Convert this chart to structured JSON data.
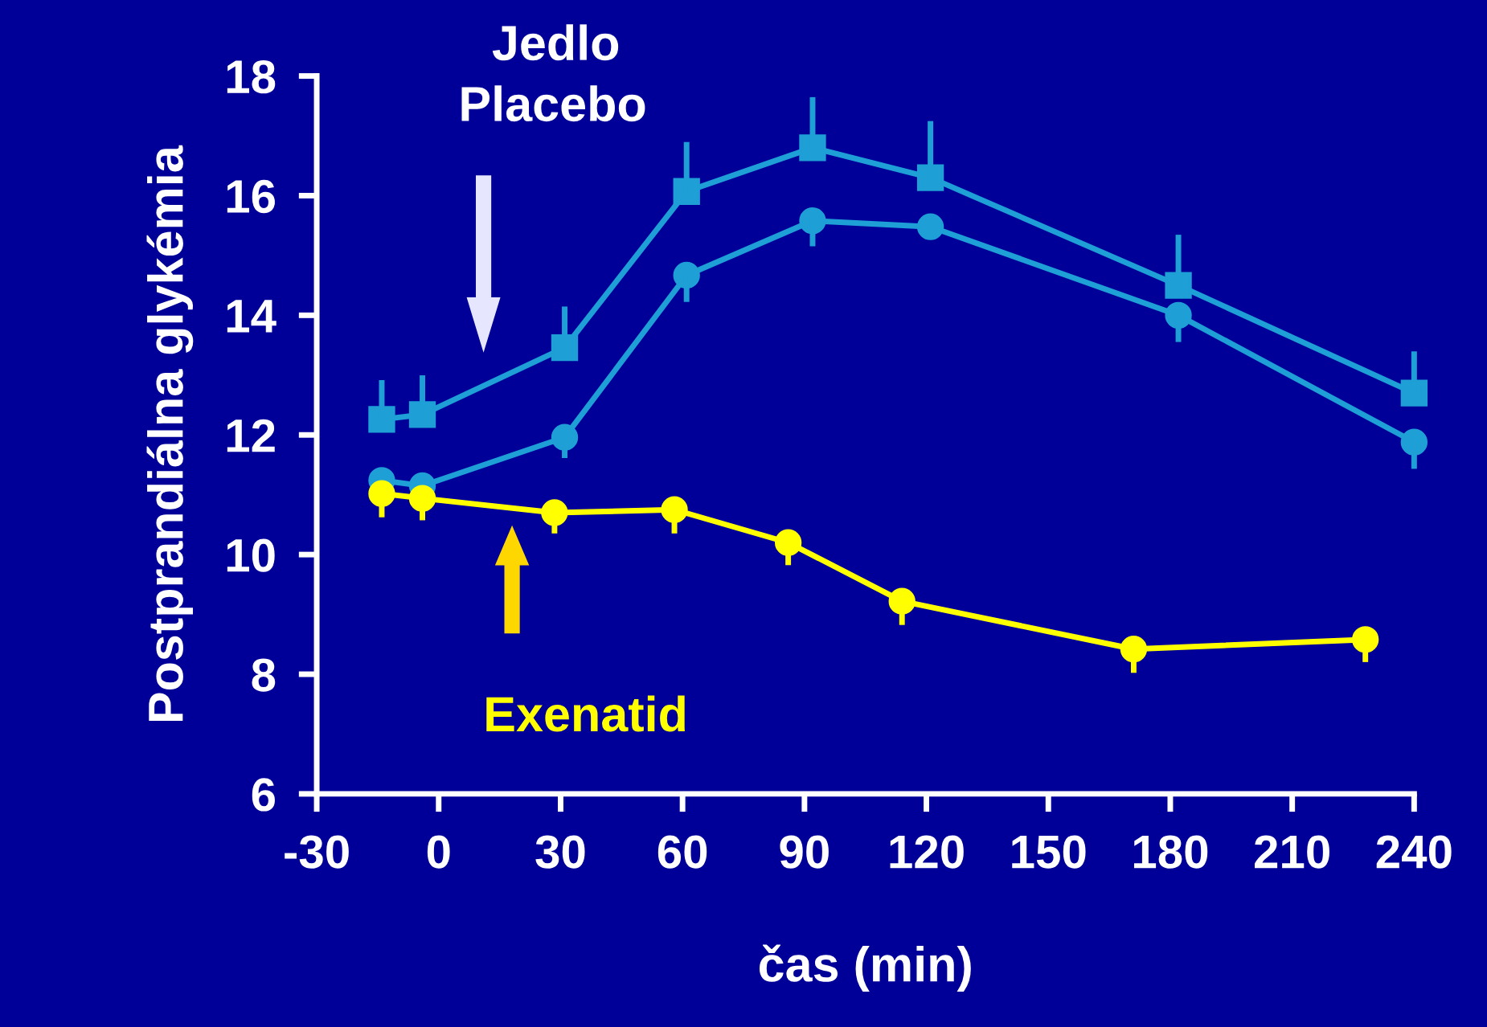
{
  "chart_data": {
    "type": "line",
    "xlabel": "čas (min)",
    "ylabel": "Postprandiálna glykémia",
    "xlim": [
      -30,
      240
    ],
    "xticks": [
      -30,
      0,
      30,
      60,
      90,
      120,
      150,
      180,
      210,
      240
    ],
    "ylim": [
      6,
      18
    ],
    "yticks": [
      6,
      8,
      10,
      12,
      14,
      16,
      18
    ],
    "grid": false,
    "legend": false,
    "series": [
      {
        "color": "#1e9fd6",
        "marker": "square",
        "x": [
          -14,
          -4,
          31,
          61,
          92,
          121,
          182,
          240
        ],
        "values": [
          12.26,
          12.34,
          13.46,
          16.07,
          16.8,
          16.3,
          14.5,
          12.7
        ],
        "errors": [
          [
            12.26,
            12.87
          ],
          [
            12.34,
            12.95
          ],
          [
            13.46,
            14.1
          ],
          [
            16.07,
            16.85
          ],
          [
            16.8,
            17.6
          ],
          [
            16.3,
            17.2
          ],
          [
            14.5,
            15.3
          ],
          [
            12.7,
            13.35
          ]
        ]
      },
      {
        "color": "#1e9fd6",
        "marker": "circle",
        "x": [
          -14,
          -4,
          31,
          61,
          92,
          121,
          182,
          240
        ],
        "values": [
          11.24,
          11.15,
          11.96,
          14.67,
          15.58,
          15.48,
          14.0,
          11.88
        ],
        "errors": [
          [
            11.24,
            11.24
          ],
          [
            11.15,
            11.15
          ],
          [
            11.66,
            11.96
          ],
          [
            14.27,
            14.67
          ],
          [
            15.2,
            15.58
          ],
          [
            15.48,
            15.48
          ],
          [
            13.6,
            14.0
          ],
          [
            11.48,
            11.88
          ]
        ]
      },
      {
        "color": "#ffff00",
        "marker": "circle",
        "x": [
          -14,
          -4,
          28.5,
          58,
          86,
          114,
          171,
          228
        ],
        "values": [
          11.02,
          10.94,
          10.7,
          10.75,
          10.2,
          9.22,
          8.42,
          8.58
        ],
        "errors": [
          [
            10.67,
            11.02
          ],
          [
            10.62,
            10.94
          ],
          [
            10.4,
            10.7
          ],
          [
            10.4,
            10.75
          ],
          [
            9.87,
            10.2
          ],
          [
            8.87,
            9.22
          ],
          [
            8.07,
            8.42
          ],
          [
            8.25,
            8.58
          ]
        ]
      }
    ],
    "annotations": [
      "Jedlo",
      "Placebo",
      "Exenatid"
    ]
  }
}
